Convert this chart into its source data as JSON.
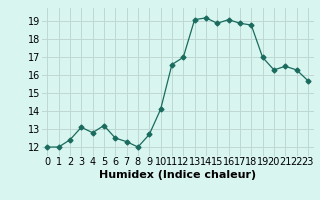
{
  "x": [
    0,
    1,
    2,
    3,
    4,
    5,
    6,
    7,
    8,
    9,
    10,
    11,
    12,
    13,
    14,
    15,
    16,
    17,
    18,
    19,
    20,
    21,
    22,
    23
  ],
  "y": [
    12.0,
    12.0,
    12.4,
    13.1,
    12.8,
    13.2,
    12.5,
    12.3,
    12.0,
    12.7,
    14.1,
    16.6,
    17.0,
    19.1,
    19.2,
    18.9,
    19.1,
    18.9,
    18.8,
    17.0,
    16.3,
    16.5,
    16.3,
    15.7
  ],
  "xlabel": "Humidex (Indice chaleur)",
  "ylim": [
    11.5,
    19.75
  ],
  "xlim": [
    -0.5,
    23.5
  ],
  "yticks": [
    12,
    13,
    14,
    15,
    16,
    17,
    18,
    19
  ],
  "xticks": [
    0,
    1,
    2,
    3,
    4,
    5,
    6,
    7,
    8,
    9,
    10,
    11,
    12,
    13,
    14,
    15,
    16,
    17,
    18,
    19,
    20,
    21,
    22,
    23
  ],
  "line_color": "#1a6b5e",
  "marker": "D",
  "marker_size": 2.5,
  "bg_color": "#d8f5f0",
  "grid_color": "#c0d8d4",
  "tick_fontsize": 7,
  "xlabel_fontsize": 8
}
